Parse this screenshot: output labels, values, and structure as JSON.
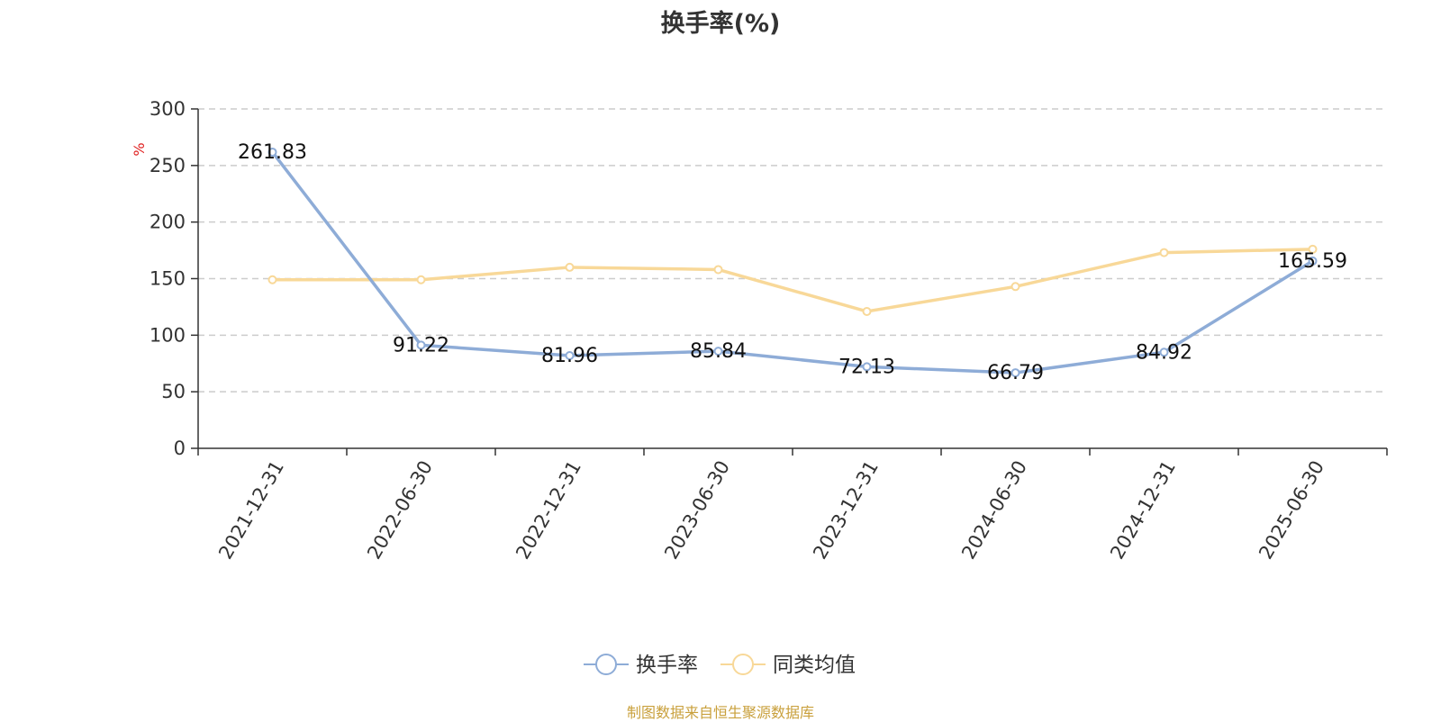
{
  "chart_data": {
    "type": "line",
    "title": "换手率(%)",
    "ylabel": "%",
    "xlabel": "",
    "ylim": [
      0,
      300
    ],
    "yticks": [
      0,
      50,
      100,
      150,
      200,
      250,
      300
    ],
    "grid": true,
    "legend_position": "bottom-center",
    "categories": [
      "2021-12-31",
      "2022-06-30",
      "2022-12-31",
      "2023-06-30",
      "2023-12-31",
      "2024-06-30",
      "2024-12-31",
      "2025-06-30"
    ],
    "series": [
      {
        "name": "换手率",
        "color": "#8eacd7",
        "values": [
          261.83,
          91.22,
          81.96,
          85.84,
          72.13,
          66.79,
          84.92,
          165.59
        ],
        "data_labels": [
          "261.83",
          "91.22",
          "81.96",
          "85.84",
          "72.13",
          "66.79",
          "84.92",
          "165.59"
        ]
      },
      {
        "name": "同类均值",
        "color": "#f8d898",
        "values": [
          149,
          149,
          160,
          158,
          121,
          143,
          173,
          176
        ]
      }
    ]
  },
  "source": "制图数据来自恒生聚源数据库"
}
